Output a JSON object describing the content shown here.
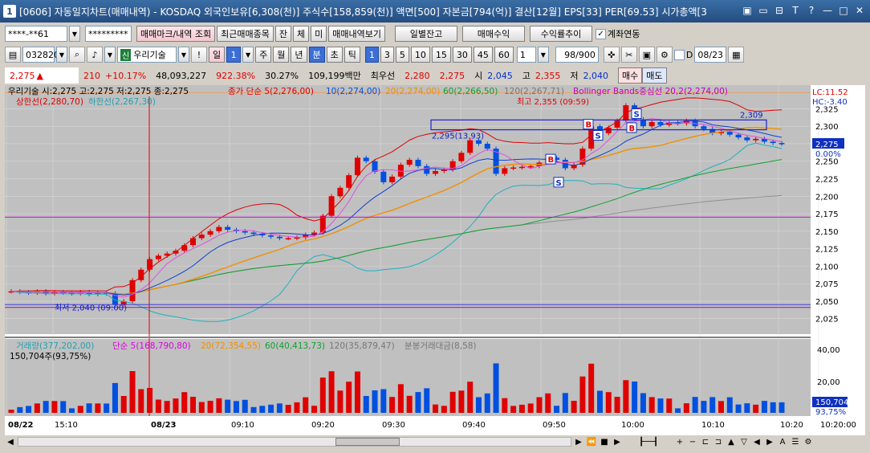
{
  "window": {
    "title": "[0606] 자동일지차트(매매내역) - KOSDAQ 외국인보유[6,308(천)] 주식수[158,859(천)] 액면[500] 자본금[794(억)] 결산[12월] EPS[33] PER[69.53] 시가총액[3",
    "app_num": "1",
    "controls": [
      "▣",
      "▭",
      "⊟",
      "T",
      "?",
      "—",
      "□",
      "✕"
    ]
  },
  "toolbar1": {
    "account": "****-**61",
    "password": "*********",
    "trade_mark_button": "매매마크/내역 조회",
    "recent_button": "최근매매종목",
    "small_buttons": [
      "잔",
      "체",
      "미"
    ],
    "history_button": "매매내역보기",
    "daily_balance_button": "일별잔고",
    "trade_profit_button": "매매수익",
    "return_trend_button": "수익률추이",
    "account_link_label": "계좌연동"
  },
  "toolbar2": {
    "code": "032820",
    "stock_name": "우리기술",
    "period_value": "1",
    "periods": [
      "일",
      "주",
      "월",
      "년",
      "분",
      "초",
      "틱"
    ],
    "minutes": [
      "1",
      "3",
      "5",
      "10",
      "15",
      "30",
      "45",
      "60"
    ],
    "unit_value": "1",
    "count": "98/900",
    "date_value": "08/23",
    "d_label": "D"
  },
  "pricebar": {
    "price": "2,275",
    "change": "210",
    "change_pct": "+10.17%",
    "volume": "48,093,227",
    "vol_ratio": "922.38%",
    "turnover": "30.27%",
    "amount": "109,199백만",
    "prefer": "최우선",
    "bid1": "2,280",
    "bid2": "2,275",
    "open_label": "시",
    "open": "2,045",
    "high_label": "고",
    "high": "2,355",
    "low_label": "저",
    "low": "2,040",
    "buy_button": "매수",
    "sell_button": "매도"
  },
  "chart_data": {
    "type": "line",
    "title": "우리기술 시:2,275 고:2,275 저:2,275 종:2,275",
    "ma_legend": [
      "종가 단순 5(2,276,00)",
      "10(2,274,00)",
      "20(2,274,00)",
      "60(2,266,50)",
      "120(2,267,71)"
    ],
    "bb_legend": "Bollinger Bands중심선 20,2(2,274,00)",
    "limit_legend": [
      "상한선(2,280,70)",
      "하한선(2,267,30)"
    ],
    "lc": "LC:11.52",
    "hc": "HC:-3.40",
    "yticks": [
      "2,325",
      "2,300",
      "2,275",
      "2,250",
      "2,225",
      "2,200",
      "2,175",
      "2,150",
      "2,125",
      "2,100",
      "2,075",
      "2,050",
      "2,025"
    ],
    "ylim": [
      2012,
      2345
    ],
    "x_labels": [
      "08/22",
      "15:10",
      "08/23",
      "09:10",
      "09:20",
      "09:30",
      "09:40",
      "09:50",
      "10:00",
      "10:10",
      "10:20",
      "10:20:00"
    ],
    "annotations": {
      "high": "최고 2,355 (09:59)",
      "low": "최저 2,040 (09:00)",
      "level1": "2,295(13.93)",
      "level2": "2,309",
      "current": "2,275",
      "current_pct": "0.00%"
    },
    "close": [
      2064,
      2063,
      2062,
      2064,
      2061,
      2063,
      2062,
      2061,
      2063,
      2060,
      2062,
      2061,
      2045,
      2050,
      2080,
      2095,
      2110,
      2115,
      2118,
      2122,
      2130,
      2140,
      2145,
      2150,
      2156,
      2152,
      2150,
      2148,
      2146,
      2144,
      2142,
      2140,
      2140,
      2141,
      2145,
      2148,
      2172,
      2200,
      2212,
      2230,
      2255,
      2250,
      2235,
      2220,
      2228,
      2245,
      2252,
      2243,
      2232,
      2236,
      2238,
      2250,
      2262,
      2280,
      2275,
      2268,
      2232,
      2240,
      2241,
      2242,
      2243,
      2248,
      2255,
      2252,
      2240,
      2245,
      2268,
      2300,
      2290,
      2298,
      2308,
      2330,
      2310,
      2300,
      2306,
      2302,
      2305,
      2304,
      2308,
      2300,
      2296,
      2290,
      2292,
      2288,
      2284,
      2280,
      2282,
      2278,
      2276,
      2275
    ],
    "volume_panel": {
      "legend": [
        "거래량(377,202,00)",
        "단순 5(168,790,80)",
        "20(72,354,55)",
        "60(40,413,73)",
        "120(35,879,47)",
        "분봉거래대금(8,58)"
      ],
      "volume_text": "150,704주(93,75%)",
      "yticks": [
        "40,00",
        "20,00"
      ],
      "last": "150,704",
      "last_pct": "93,75%"
    }
  },
  "colors": {
    "up": "#e00000",
    "down": "#0050e0",
    "ma5": "#e050e0",
    "ma10": "#1040d0",
    "ma20": "#f09000",
    "ma60": "#10a030",
    "ma120": "#909090",
    "bb": "#e00000"
  }
}
